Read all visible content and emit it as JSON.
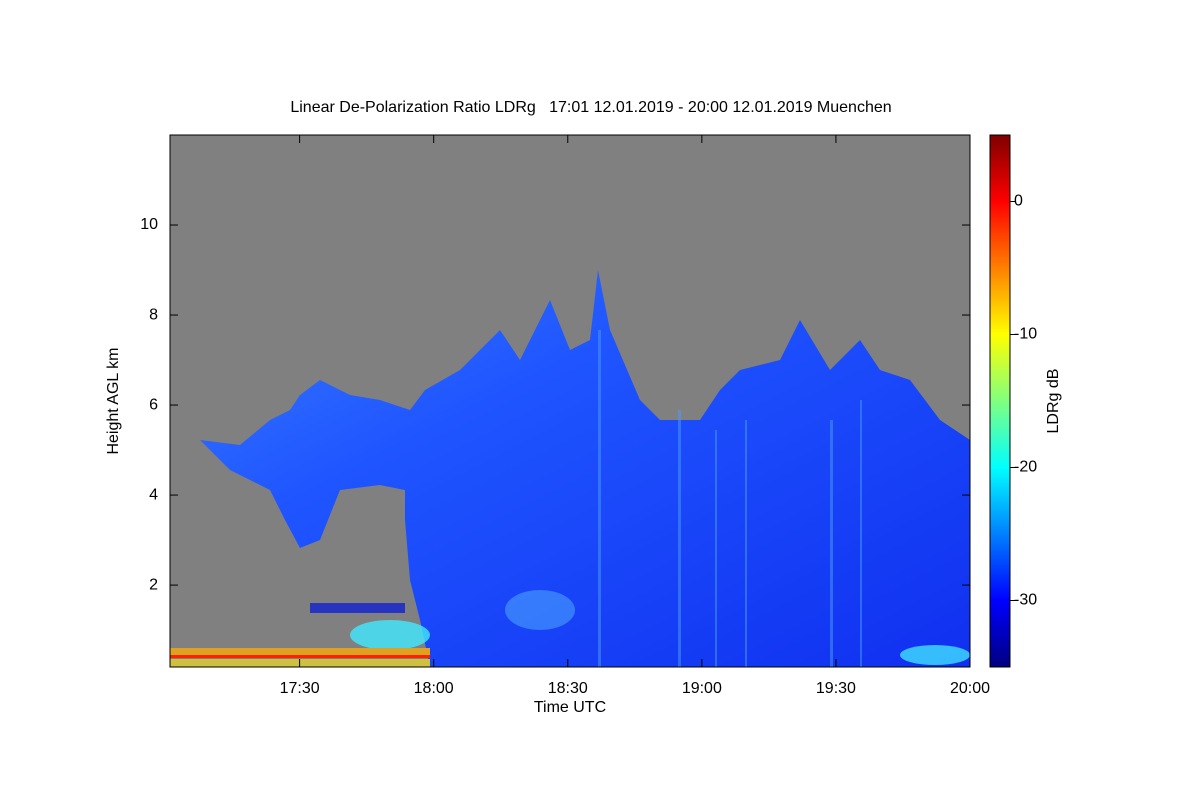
{
  "chart_data": {
    "type": "heatmap",
    "title": "Linear De-Polarization Ratio LDRg   17:01 12.01.2019 - 20:00 12.01.2019 Muenchen",
    "x_label": "Time UTC",
    "y_label": "Height AGL km",
    "colorbar_label": "LDRg dB",
    "xlim": [
      1021,
      1200
    ],
    "xticks": [
      {
        "value": 1050,
        "label": "17:30"
      },
      {
        "value": 1080,
        "label": "18:00"
      },
      {
        "value": 1110,
        "label": "18:30"
      },
      {
        "value": 1140,
        "label": "19:00"
      },
      {
        "value": 1170,
        "label": "19:30"
      },
      {
        "value": 1200,
        "label": "20:00"
      }
    ],
    "ylim": [
      0.18,
      12
    ],
    "yticks": [
      2,
      4,
      6,
      8,
      10
    ],
    "zlim": [
      -35,
      5
    ],
    "zticks": [
      -30,
      -20,
      -10,
      0
    ],
    "colormap": [
      "#00007f",
      "#0000ff",
      "#0080ff",
      "#00ffff",
      "#80ff80",
      "#ffff00",
      "#ff8000",
      "#ff0000",
      "#7f0000"
    ],
    "background": "#808080"
  }
}
